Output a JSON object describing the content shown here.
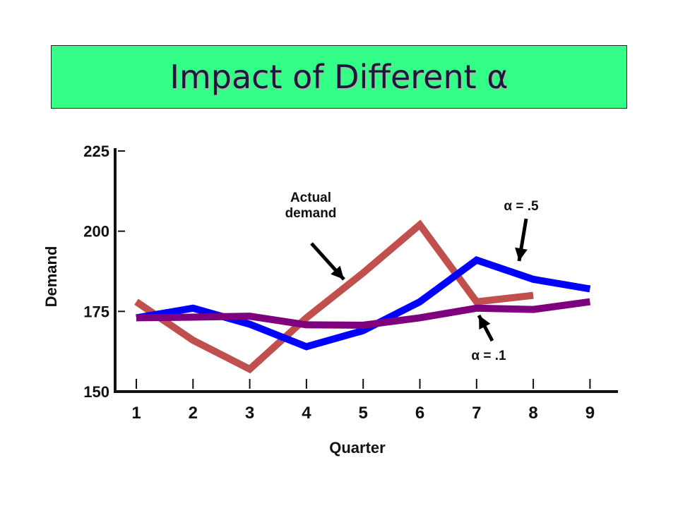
{
  "chart_data": {
    "type": "line",
    "title": "Impact of Different α",
    "xlabel": "Quarter",
    "ylabel": "Demand",
    "x": [
      1,
      2,
      3,
      4,
      5,
      6,
      7,
      8,
      9
    ],
    "ylim": [
      150,
      225
    ],
    "yticks": [
      150,
      175,
      200,
      225
    ],
    "grid": false,
    "series": [
      {
        "name": "Actual demand",
        "color": "#c0504d",
        "x": [
          1,
          2,
          3,
          4,
          5,
          6,
          7,
          8
        ],
        "values": [
          178,
          166,
          157,
          173,
          187,
          202,
          178,
          180
        ]
      },
      {
        "name": "α = .5",
        "color": "#0000ff",
        "x": [
          1,
          2,
          3,
          4,
          5,
          6,
          7,
          8,
          9
        ],
        "values": [
          173,
          176,
          171,
          164,
          169,
          178,
          191,
          185,
          182
        ]
      },
      {
        "name": "α = .1",
        "color": "#7f007f",
        "x": [
          1,
          2,
          3,
          4,
          5,
          6,
          7,
          8,
          9
        ],
        "values": [
          173,
          173.2,
          173.5,
          170.8,
          170.7,
          173,
          176,
          175.6,
          178
        ]
      }
    ],
    "annotations": [
      {
        "text_lines": [
          "Actual",
          "demand"
        ],
        "target": "Actual demand"
      },
      {
        "text": "α = .5",
        "target": "α = .5"
      },
      {
        "text": "α = .1",
        "target": "α = .1"
      }
    ]
  }
}
